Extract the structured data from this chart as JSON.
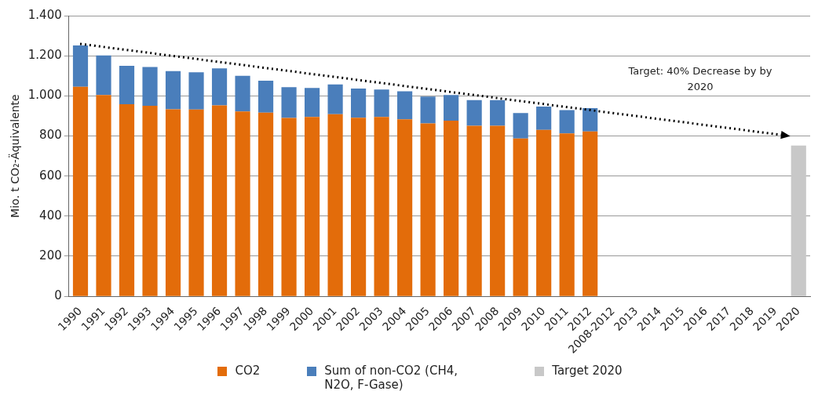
{
  "chart_data": {
    "type": "bar",
    "stacked": true,
    "ylabel": "Mio. t CO₂-Äquivalente",
    "categories": [
      "1990",
      "1991",
      "1992",
      "1993",
      "1994",
      "1995",
      "1996",
      "1997",
      "1998",
      "1999",
      "2000",
      "2001",
      "2002",
      "2003",
      "2004",
      "2005",
      "2006",
      "2007",
      "2008",
      "2009",
      "2010",
      "2011",
      "2012",
      "2008-2012",
      "2013",
      "2014",
      "2015",
      "2016",
      "2017",
      "2018",
      "2019",
      "2020"
    ],
    "series": [
      {
        "name": "CO2",
        "color": "#e36c0a",
        "values": [
          1045,
          1004,
          958,
          950,
          933,
          932,
          952,
          922,
          916,
          890,
          895,
          908,
          891,
          895,
          883,
          863,
          876,
          851,
          851,
          787,
          830,
          813,
          822,
          null,
          null,
          null,
          null,
          null,
          null,
          null,
          null,
          null
        ]
      },
      {
        "name": "Sum of non-CO2 (CH4, N2O, F-Gase)",
        "color": "#4a7ebb",
        "values": [
          206,
          198,
          192,
          194,
          190,
          186,
          185,
          178,
          160,
          153,
          144,
          149,
          145,
          137,
          140,
          133,
          128,
          128,
          128,
          127,
          117,
          116,
          117,
          null,
          null,
          null,
          null,
          null,
          null,
          null,
          null,
          null
        ]
      },
      {
        "name": "Target 2020",
        "color": "#c8c8c8",
        "values": [
          null,
          null,
          null,
          null,
          null,
          null,
          null,
          null,
          null,
          null,
          null,
          null,
          null,
          null,
          null,
          null,
          null,
          null,
          null,
          null,
          null,
          null,
          null,
          null,
          null,
          null,
          null,
          null,
          null,
          null,
          null,
          752
        ]
      }
    ],
    "ylim": [
      0,
      1400
    ],
    "yticks": [
      0,
      200,
      400,
      600,
      800,
      {
        "value": 1000,
        "label": "1.000"
      },
      {
        "value": 1200,
        "label": "1.200"
      },
      {
        "value": 1400,
        "label": "1.400"
      }
    ],
    "grid": "y",
    "legend": "bottom",
    "annotations": [
      "Target: 40% Decrease by by 2020"
    ]
  }
}
